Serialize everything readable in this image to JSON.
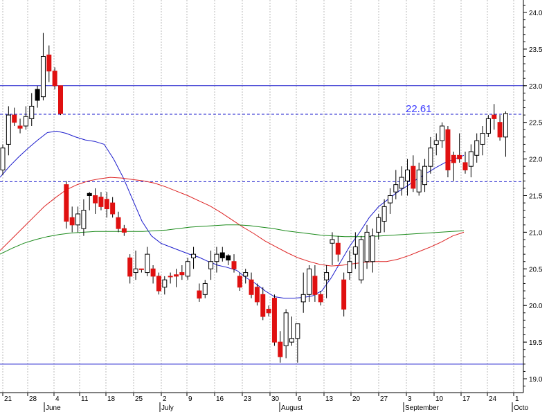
{
  "chart_data": {
    "type": "candlestick",
    "y_axis": {
      "ticks": [
        "19.0",
        "19.5",
        "20.0",
        "20.5",
        "21.0",
        "21.5",
        "22.0",
        "22.5",
        "23.0",
        "23.5",
        "24.0"
      ],
      "range": [
        18.8,
        24.2
      ]
    },
    "x_axis": {
      "day_ticks": [
        "21",
        "28",
        "4",
        "11",
        "18",
        "25",
        "2",
        "9",
        "16",
        "23",
        "30",
        "6",
        "13",
        "20",
        "27",
        "3",
        "10",
        "17",
        "24",
        "1"
      ],
      "month_labels": [
        "June",
        "July",
        "August",
        "September",
        "Octo"
      ]
    },
    "annotation": {
      "text": "22.61",
      "value": 22.61
    },
    "horizontal_lines": [
      {
        "value": 23.0,
        "style": "solid",
        "color": "#1a1acc"
      },
      {
        "value": 22.61,
        "style": "dashed",
        "color": "#1a1acc"
      },
      {
        "value": 21.69,
        "style": "dashed",
        "color": "#1a1acc"
      },
      {
        "value": 19.2,
        "style": "solid",
        "color": "#1a1acc"
      }
    ],
    "candles": [
      {
        "o": 21.85,
        "h": 22.2,
        "l": 21.78,
        "c": 22.15,
        "color": "white"
      },
      {
        "o": 22.2,
        "h": 22.72,
        "l": 22.05,
        "c": 22.6,
        "color": "white"
      },
      {
        "o": 22.6,
        "h": 22.7,
        "l": 22.45,
        "c": 22.5,
        "color": "red"
      },
      {
        "o": 22.45,
        "h": 22.55,
        "l": 22.35,
        "c": 22.42,
        "color": "red"
      },
      {
        "o": 22.45,
        "h": 22.72,
        "l": 22.4,
        "c": 22.58,
        "color": "white"
      },
      {
        "o": 22.55,
        "h": 22.9,
        "l": 22.45,
        "c": 22.72,
        "color": "white"
      },
      {
        "o": 22.95,
        "h": 23.0,
        "l": 22.7,
        "c": 22.8,
        "color": "black"
      },
      {
        "o": 22.85,
        "h": 23.72,
        "l": 22.8,
        "c": 23.4,
        "color": "white"
      },
      {
        "o": 23.42,
        "h": 23.55,
        "l": 23.05,
        "c": 23.2,
        "color": "red"
      },
      {
        "o": 23.2,
        "h": 23.25,
        "l": 22.95,
        "c": 23.0,
        "color": "red"
      },
      {
        "o": 23.0,
        "h": 23.0,
        "l": 22.6,
        "c": 22.62,
        "color": "red"
      },
      {
        "o": 21.65,
        "h": 21.7,
        "l": 21.05,
        "c": 21.15,
        "color": "red"
      },
      {
        "o": 21.2,
        "h": 21.35,
        "l": 21.0,
        "c": 21.1,
        "color": "red"
      },
      {
        "o": 21.1,
        "h": 21.35,
        "l": 21.0,
        "c": 21.25,
        "color": "white"
      },
      {
        "o": 21.05,
        "h": 21.45,
        "l": 20.95,
        "c": 21.3,
        "color": "white"
      },
      {
        "o": 21.53,
        "h": 21.55,
        "l": 21.3,
        "c": 21.5,
        "color": "black"
      },
      {
        "o": 21.5,
        "h": 21.6,
        "l": 21.25,
        "c": 21.4,
        "color": "red"
      },
      {
        "o": 21.48,
        "h": 21.55,
        "l": 21.3,
        "c": 21.35,
        "color": "red"
      },
      {
        "o": 21.45,
        "h": 21.55,
        "l": 21.2,
        "c": 21.32,
        "color": "red"
      },
      {
        "o": 21.4,
        "h": 21.48,
        "l": 21.2,
        "c": 21.25,
        "color": "red"
      },
      {
        "o": 21.2,
        "h": 21.28,
        "l": 21.0,
        "c": 21.05,
        "color": "red"
      },
      {
        "o": 21.05,
        "h": 21.1,
        "l": 20.95,
        "c": 21.0,
        "color": "red"
      },
      {
        "o": 20.65,
        "h": 20.7,
        "l": 20.3,
        "c": 20.4,
        "color": "red"
      },
      {
        "o": 20.45,
        "h": 20.75,
        "l": 20.35,
        "c": 20.5,
        "color": "white"
      },
      {
        "o": 20.5,
        "h": 20.5,
        "l": 20.45,
        "c": 20.5,
        "color": "red"
      },
      {
        "o": 20.45,
        "h": 20.8,
        "l": 20.4,
        "c": 20.7,
        "color": "white"
      },
      {
        "o": 20.5,
        "h": 20.55,
        "l": 20.3,
        "c": 20.4,
        "color": "red"
      },
      {
        "o": 20.4,
        "h": 20.45,
        "l": 20.15,
        "c": 20.2,
        "color": "red"
      },
      {
        "o": 20.25,
        "h": 20.4,
        "l": 20.15,
        "c": 20.35,
        "color": "white"
      },
      {
        "o": 20.4,
        "h": 20.45,
        "l": 20.3,
        "c": 20.4,
        "color": "red"
      },
      {
        "o": 20.4,
        "h": 20.5,
        "l": 20.25,
        "c": 20.42,
        "color": "red"
      },
      {
        "o": 20.42,
        "h": 20.55,
        "l": 20.35,
        "c": 20.45,
        "color": "red"
      },
      {
        "o": 20.4,
        "h": 20.65,
        "l": 20.35,
        "c": 20.6,
        "color": "white"
      },
      {
        "o": 20.65,
        "h": 20.8,
        "l": 20.5,
        "c": 20.7,
        "color": "white"
      },
      {
        "o": 20.2,
        "h": 20.3,
        "l": 20.05,
        "c": 20.1,
        "color": "red"
      },
      {
        "o": 20.15,
        "h": 20.35,
        "l": 20.1,
        "c": 20.3,
        "color": "white"
      },
      {
        "o": 20.5,
        "h": 20.75,
        "l": 20.35,
        "c": 20.6,
        "color": "white"
      },
      {
        "o": 20.6,
        "h": 20.8,
        "l": 20.45,
        "c": 20.7,
        "color": "white"
      },
      {
        "o": 20.72,
        "h": 20.8,
        "l": 20.6,
        "c": 20.65,
        "color": "black"
      },
      {
        "o": 20.68,
        "h": 20.7,
        "l": 20.55,
        "c": 20.62,
        "color": "black"
      },
      {
        "o": 20.6,
        "h": 20.7,
        "l": 20.45,
        "c": 20.5,
        "color": "red"
      },
      {
        "o": 20.4,
        "h": 20.45,
        "l": 20.2,
        "c": 20.25,
        "color": "red"
      },
      {
        "o": 20.4,
        "h": 20.5,
        "l": 20.3,
        "c": 20.45,
        "color": "white"
      },
      {
        "o": 20.35,
        "h": 20.45,
        "l": 20.1,
        "c": 20.15,
        "color": "red"
      },
      {
        "o": 20.25,
        "h": 20.3,
        "l": 20.0,
        "c": 20.05,
        "color": "red"
      },
      {
        "o": 20.15,
        "h": 20.25,
        "l": 19.8,
        "c": 19.85,
        "color": "red"
      },
      {
        "o": 19.95,
        "h": 20.0,
        "l": 19.85,
        "c": 19.9,
        "color": "red"
      },
      {
        "o": 20.1,
        "h": 20.15,
        "l": 19.45,
        "c": 19.5,
        "color": "red"
      },
      {
        "o": 19.5,
        "h": 19.65,
        "l": 19.22,
        "c": 19.3,
        "color": "red"
      },
      {
        "o": 19.45,
        "h": 19.95,
        "l": 19.28,
        "c": 19.9,
        "color": "white"
      },
      {
        "o": 19.5,
        "h": 19.85,
        "l": 19.45,
        "c": 19.55,
        "color": "white"
      },
      {
        "o": 19.55,
        "h": 19.7,
        "l": 19.22,
        "c": 19.75,
        "color": "white"
      },
      {
        "o": 20.05,
        "h": 20.45,
        "l": 19.9,
        "c": 20.15,
        "color": "white"
      },
      {
        "o": 20.15,
        "h": 20.55,
        "l": 20.05,
        "c": 20.5,
        "color": "white"
      },
      {
        "o": 20.4,
        "h": 20.55,
        "l": 20.05,
        "c": 20.15,
        "color": "red"
      },
      {
        "o": 20.15,
        "h": 20.2,
        "l": 20.0,
        "c": 20.05,
        "color": "red"
      },
      {
        "o": 20.35,
        "h": 20.55,
        "l": 20.1,
        "c": 20.45,
        "color": "white"
      },
      {
        "o": 20.85,
        "h": 21.0,
        "l": 20.55,
        "c": 20.9,
        "color": "white"
      },
      {
        "o": 20.85,
        "h": 20.95,
        "l": 20.6,
        "c": 20.7,
        "color": "red"
      },
      {
        "o": 20.35,
        "h": 20.45,
        "l": 19.85,
        "c": 19.95,
        "color": "red"
      },
      {
        "o": 20.45,
        "h": 20.75,
        "l": 20.35,
        "c": 20.6,
        "color": "white"
      },
      {
        "o": 20.7,
        "h": 21.0,
        "l": 20.5,
        "c": 20.8,
        "color": "white"
      },
      {
        "o": 20.35,
        "h": 20.95,
        "l": 20.3,
        "c": 20.9,
        "color": "white"
      },
      {
        "o": 20.6,
        "h": 21.1,
        "l": 20.5,
        "c": 21.0,
        "color": "white"
      },
      {
        "o": 20.6,
        "h": 21.05,
        "l": 20.45,
        "c": 20.95,
        "color": "white"
      },
      {
        "o": 21.0,
        "h": 21.25,
        "l": 20.9,
        "c": 21.2,
        "color": "white"
      },
      {
        "o": 21.15,
        "h": 21.45,
        "l": 21.0,
        "c": 21.35,
        "color": "white"
      },
      {
        "o": 21.4,
        "h": 21.6,
        "l": 21.25,
        "c": 21.5,
        "color": "white"
      },
      {
        "o": 21.55,
        "h": 21.85,
        "l": 21.45,
        "c": 21.65,
        "color": "white"
      },
      {
        "o": 21.6,
        "h": 21.9,
        "l": 21.5,
        "c": 21.75,
        "color": "white"
      },
      {
        "o": 21.7,
        "h": 22.0,
        "l": 21.5,
        "c": 21.85,
        "color": "white"
      },
      {
        "o": 21.9,
        "h": 22.05,
        "l": 21.55,
        "c": 21.6,
        "color": "red"
      },
      {
        "o": 21.55,
        "h": 21.95,
        "l": 21.5,
        "c": 21.85,
        "color": "white"
      },
      {
        "o": 21.65,
        "h": 22.0,
        "l": 21.55,
        "c": 21.9,
        "color": "white"
      },
      {
        "o": 21.9,
        "h": 22.3,
        "l": 21.8,
        "c": 22.15,
        "color": "white"
      },
      {
        "o": 22.2,
        "h": 22.35,
        "l": 22.05,
        "c": 22.25,
        "color": "white"
      },
      {
        "o": 22.25,
        "h": 22.5,
        "l": 22.15,
        "c": 22.45,
        "color": "white"
      },
      {
        "o": 22.4,
        "h": 22.45,
        "l": 21.75,
        "c": 21.85,
        "color": "red"
      },
      {
        "o": 22.05,
        "h": 22.1,
        "l": 21.7,
        "c": 21.95,
        "color": "red"
      },
      {
        "o": 22.05,
        "h": 22.35,
        "l": 21.95,
        "c": 22.0,
        "color": "red"
      },
      {
        "o": 21.95,
        "h": 22.1,
        "l": 21.8,
        "c": 21.85,
        "color": "red"
      },
      {
        "o": 21.9,
        "h": 22.2,
        "l": 21.75,
        "c": 22.1,
        "color": "white"
      },
      {
        "o": 22.05,
        "h": 22.35,
        "l": 21.95,
        "c": 22.25,
        "color": "white"
      },
      {
        "o": 22.2,
        "h": 22.45,
        "l": 22.05,
        "c": 22.35,
        "color": "white"
      },
      {
        "o": 22.35,
        "h": 22.6,
        "l": 22.3,
        "c": 22.55,
        "color": "white"
      },
      {
        "o": 22.55,
        "h": 22.75,
        "l": 22.4,
        "c": 22.6,
        "color": "red"
      },
      {
        "o": 22.5,
        "h": 22.6,
        "l": 22.25,
        "c": 22.3,
        "color": "red"
      },
      {
        "o": 22.3,
        "h": 22.65,
        "l": 22.03,
        "c": 22.62,
        "color": "white"
      }
    ],
    "moving_averages": [
      {
        "color": "#1a1acc",
        "values": [
          21.75,
          21.9,
          22.03,
          22.15,
          22.26,
          22.36,
          22.38,
          22.35,
          22.3,
          22.26,
          22.24,
          22.2,
          22.0,
          21.75,
          21.45,
          21.15,
          20.95,
          20.85,
          20.8,
          20.75,
          20.7,
          20.66,
          20.6,
          20.55,
          20.52,
          20.48,
          20.38,
          20.3,
          20.2,
          20.12,
          20.1,
          20.1,
          20.11,
          20.13,
          20.2,
          20.38,
          20.6,
          20.82,
          21.0,
          21.2,
          21.35,
          21.45,
          21.55,
          21.63,
          21.72,
          21.8,
          21.88,
          21.95,
          22.0,
          22.05
        ]
      },
      {
        "color": "#dd2222",
        "values": [
          20.75,
          20.9,
          21.05,
          21.2,
          21.35,
          21.47,
          21.58,
          21.65,
          21.7,
          21.73,
          21.75,
          21.74,
          21.72,
          21.7,
          21.67,
          21.62,
          21.56,
          21.5,
          21.43,
          21.36,
          21.27,
          21.17,
          21.07,
          20.98,
          20.88,
          20.8,
          20.72,
          20.65,
          20.6,
          20.56,
          20.54,
          20.55,
          20.57,
          20.59,
          20.6,
          20.6,
          20.63,
          20.68,
          20.74,
          20.8,
          20.87,
          20.95,
          21.0
        ]
      },
      {
        "color": "#1a8a1a",
        "values": [
          20.7,
          20.78,
          20.85,
          20.9,
          20.94,
          20.97,
          20.99,
          21.0,
          21.01,
          21.01,
          21.01,
          21.01,
          21.01,
          21.02,
          21.03,
          21.05,
          21.07,
          21.08,
          21.09,
          21.1,
          21.1,
          21.09,
          21.07,
          21.05,
          21.02,
          21.0,
          20.98,
          20.96,
          20.95,
          20.94,
          20.94,
          20.94,
          20.95,
          20.96,
          20.97,
          20.98,
          20.99,
          21.0,
          21.01,
          21.02
        ]
      }
    ]
  }
}
